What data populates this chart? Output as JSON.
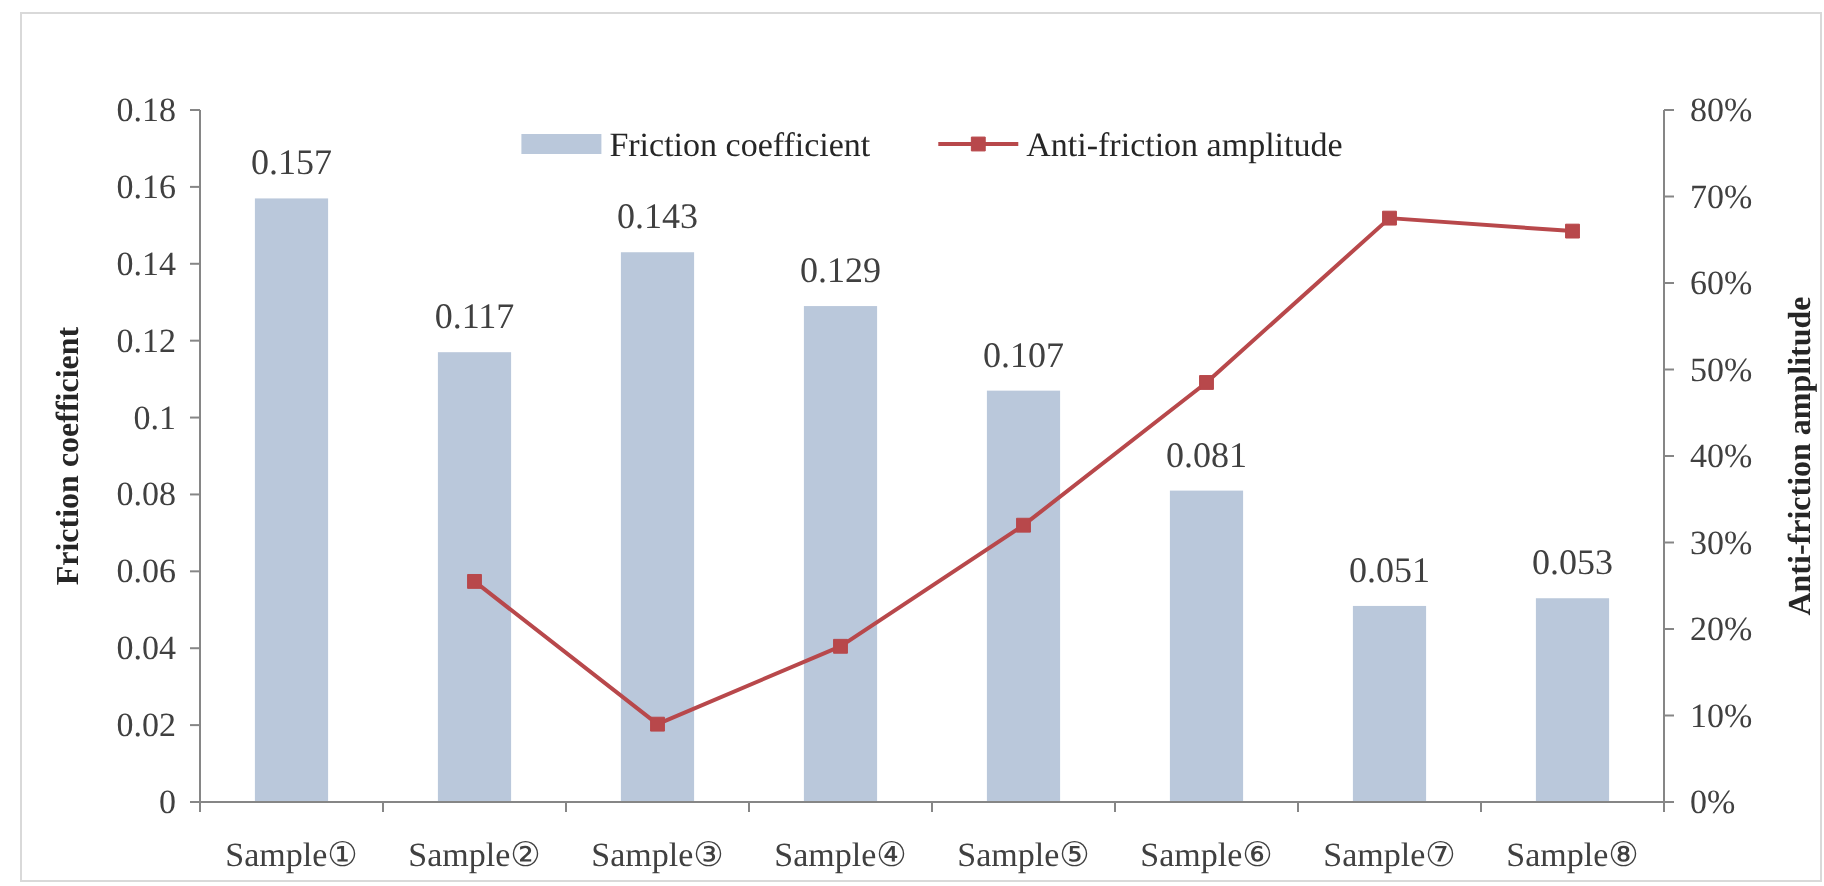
{
  "chart_data": {
    "type": "bar",
    "categories": [
      "Sample①",
      "Sample②",
      "Sample③",
      "Sample④",
      "Sample⑤",
      "Sample⑥",
      "Sample⑦",
      "Sample⑧"
    ],
    "series": [
      {
        "name": "Friction coefficient",
        "color": "#bac8db",
        "values": [
          0.157,
          0.117,
          0.143,
          0.129,
          0.107,
          0.081,
          0.051,
          0.053
        ],
        "value_labels": [
          "0.157",
          "0.117",
          "0.143",
          "0.129",
          "0.107",
          "0.081",
          "0.051",
          "0.053"
        ]
      },
      {
        "name": "Anti-friction amplitude",
        "type": "line",
        "axis": "y2",
        "color": "#b8484b",
        "values": [
          null,
          25.5,
          9,
          18,
          32,
          48.5,
          67.5,
          66
        ]
      }
    ],
    "ylabel": "Friction coefficient",
    "y2label": "Anti-friction amplitude",
    "ylim": [
      0,
      0.18
    ],
    "yticks": [
      0,
      0.02,
      0.04,
      0.06,
      0.08,
      0.1,
      0.12,
      0.14,
      0.16,
      0.18
    ],
    "y2lim": [
      0,
      80
    ],
    "y2ticks": [
      {
        "value": 0,
        "label": "0%"
      },
      {
        "value": 10,
        "label": "10%"
      },
      {
        "value": 20,
        "label": "20%"
      },
      {
        "value": 30,
        "label": "30%"
      },
      {
        "value": 40,
        "label": "40%"
      },
      {
        "value": 50,
        "label": "50%"
      },
      {
        "value": 60,
        "label": "60%"
      },
      {
        "value": 70,
        "label": "70%"
      },
      {
        "value": 80,
        "label": "80%"
      }
    ],
    "legend": "top",
    "marker": "square",
    "line_style": "solid"
  }
}
